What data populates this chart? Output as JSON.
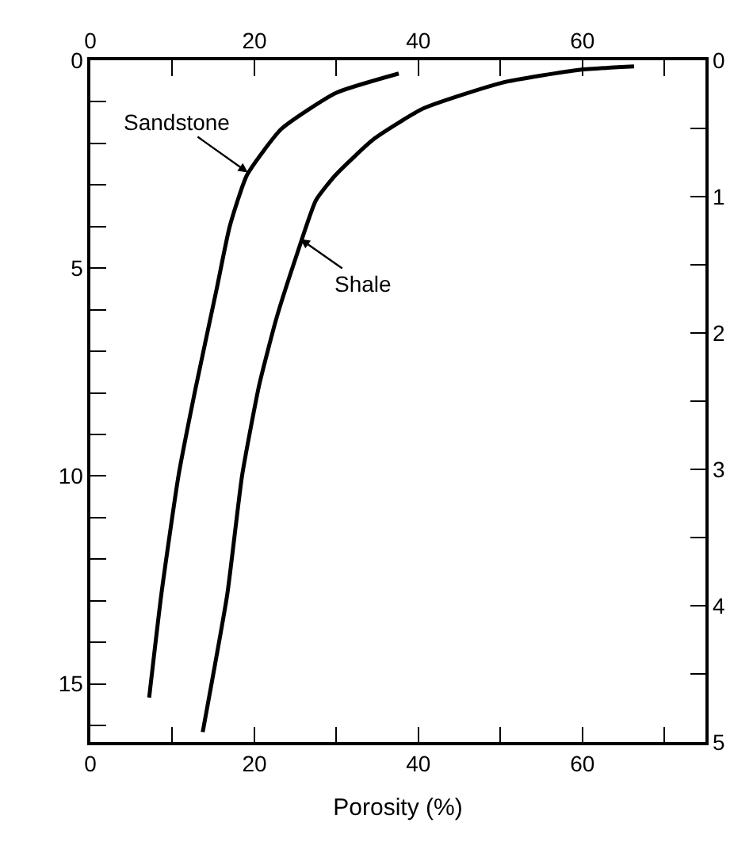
{
  "chart_data": {
    "type": "line",
    "xlabel": "Porosity (%)",
    "series": [
      {
        "color": "#000000",
        "x": [
          37.6,
          29.9,
          23.3,
          19.1,
          17.0,
          15.4,
          12.8,
          10.75,
          8.66,
          7.17
        ],
        "values": [
          0.32,
          0.79,
          1.65,
          2.76,
          3.99,
          5.5,
          7.92,
          9.99,
          12.84,
          15.33
        ]
      },
      {
        "color": "#000000",
        "x": [
          66.3,
          59.7,
          50.2,
          40.6,
          34.6,
          29.9,
          27.5,
          25.1,
          22.7,
          20.6,
          18.5,
          16.7,
          13.7
        ],
        "values": [
          0.15,
          0.23,
          0.54,
          1.16,
          1.89,
          2.76,
          3.37,
          4.72,
          6.2,
          7.8,
          9.99,
          12.84,
          16.16
        ]
      }
    ],
    "annotations": [
      {
        "text": "Sandstone",
        "x": 19.2,
        "y": 2.7
      },
      {
        "text": "Shale",
        "x": 25.6,
        "y": 4.3
      }
    ],
    "xlim": [
      0,
      75
    ],
    "xticks": [
      0,
      {
        "value": 10,
        "label": null
      },
      20,
      {
        "value": 30,
        "label": null
      },
      40,
      {
        "value": 50,
        "label": null
      },
      60,
      {
        "value": 70,
        "label": null
      }
    ],
    "x2lim": [
      0,
      75
    ],
    "x2ticks": [
      0,
      {
        "value": 10,
        "label": null
      },
      20,
      {
        "value": 30,
        "label": null
      },
      40,
      {
        "value": 50,
        "label": null
      },
      60,
      {
        "value": 70,
        "label": null
      }
    ],
    "ylim": [
      16.4,
      0
    ],
    "yticks": [
      0,
      {
        "value": 1,
        "label": null
      },
      {
        "value": 2,
        "label": null
      },
      {
        "value": 3,
        "label": null
      },
      {
        "value": 4,
        "label": null
      },
      5,
      {
        "value": 6,
        "label": null
      },
      {
        "value": 7,
        "label": null
      },
      {
        "value": 8,
        "label": null
      },
      {
        "value": 9,
        "label": null
      },
      10,
      {
        "value": 11,
        "label": null
      },
      {
        "value": 12,
        "label": null
      },
      {
        "value": 13,
        "label": null
      },
      {
        "value": 14,
        "label": null
      },
      15,
      {
        "value": 16,
        "label": null
      }
    ],
    "y2lim": [
      5,
      0
    ],
    "y2ticks": [
      0,
      {
        "value": 0.5,
        "label": null
      },
      1,
      {
        "value": 1.5,
        "label": null
      },
      2,
      {
        "value": 2.5,
        "label": null
      },
      3,
      {
        "value": 3.5,
        "label": null
      },
      4,
      {
        "value": 4.5,
        "label": null
      },
      5
    ],
    "marker": "none",
    "line_style": "solid"
  }
}
